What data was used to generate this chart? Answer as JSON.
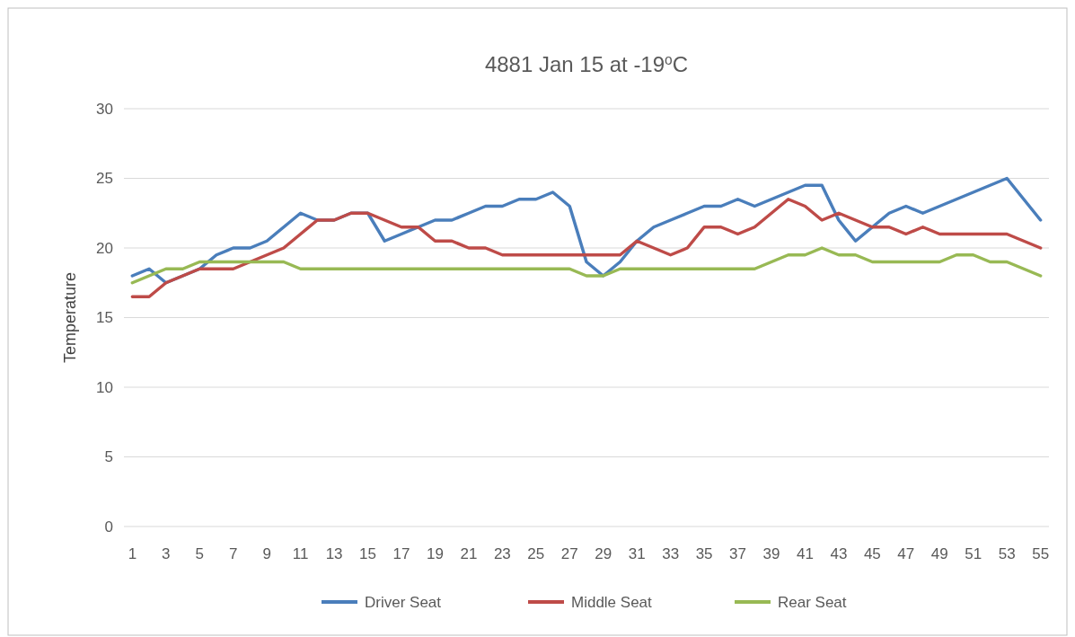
{
  "chart_data": {
    "type": "line",
    "title": "4881 Jan 15 at -19$^{o}$C",
    "ylabel": "Temperature",
    "x": [
      1,
      2,
      3,
      4,
      5,
      6,
      7,
      8,
      9,
      10,
      11,
      12,
      13,
      14,
      15,
      16,
      17,
      18,
      19,
      20,
      21,
      22,
      23,
      24,
      25,
      26,
      27,
      28,
      29,
      30,
      31,
      32,
      33,
      34,
      35,
      36,
      37,
      38,
      39,
      40,
      41,
      42,
      43,
      44,
      45,
      46,
      47,
      48,
      49,
      50,
      51,
      52,
      53,
      54,
      55
    ],
    "xlim": [
      0.5,
      55.5
    ],
    "xticks": [
      1,
      3,
      5,
      7,
      9,
      11,
      13,
      15,
      17,
      19,
      21,
      23,
      25,
      27,
      29,
      31,
      33,
      35,
      37,
      39,
      41,
      43,
      45,
      47,
      49,
      51,
      53,
      55
    ],
    "series": [
      {
        "name": "Driver Seat",
        "color": "#4a7ebb",
        "values": [
          18,
          18.5,
          17.5,
          18,
          18.5,
          19.5,
          20,
          20,
          20.5,
          21.5,
          22.5,
          22,
          22,
          22.5,
          22.5,
          20.5,
          21,
          21.5,
          22,
          22,
          22.5,
          23,
          23,
          23.5,
          23.5,
          24,
          23,
          19,
          18,
          19,
          20.5,
          21.5,
          22,
          22.5,
          23,
          23,
          23.5,
          23,
          23.5,
          24,
          24.5,
          24.5,
          22,
          20.5,
          21.5,
          22.5,
          23,
          22.5,
          23,
          23.5,
          24,
          24.5,
          25,
          23.5,
          22
        ]
      },
      {
        "name": "Middle Seat",
        "color": "#be4b48",
        "values": [
          16.5,
          16.5,
          17.5,
          18,
          18.5,
          18.5,
          18.5,
          19,
          19.5,
          20,
          21,
          22,
          22,
          22.5,
          22.5,
          22,
          21.5,
          21.5,
          20.5,
          20.5,
          20,
          20,
          19.5,
          19.5,
          19.5,
          19.5,
          19.5,
          19.5,
          19.5,
          19.5,
          20.5,
          20,
          19.5,
          20,
          21.5,
          21.5,
          21,
          21.5,
          22.5,
          23.5,
          23,
          22,
          22.5,
          22,
          21.5,
          21.5,
          21,
          21.5,
          21,
          21,
          21,
          21,
          21,
          20.5,
          20
        ]
      },
      {
        "name": "Rear Seat",
        "color": "#98b954",
        "values": [
          17.5,
          18,
          18.5,
          18.5,
          19,
          19,
          19,
          19,
          19,
          19,
          18.5,
          18.5,
          18.5,
          18.5,
          18.5,
          18.5,
          18.5,
          18.5,
          18.5,
          18.5,
          18.5,
          18.5,
          18.5,
          18.5,
          18.5,
          18.5,
          18.5,
          18,
          18,
          18.5,
          18.5,
          18.5,
          18.5,
          18.5,
          18.5,
          18.5,
          18.5,
          18.5,
          19,
          19.5,
          19.5,
          20,
          19.5,
          19.5,
          19,
          19,
          19,
          19,
          19,
          19.5,
          19.5,
          19,
          19,
          18.5,
          18
        ]
      }
    ],
    "ylim": [
      0,
      30
    ],
    "yticks": [
      0,
      5,
      10,
      15,
      20,
      25,
      30
    ],
    "grid": "y",
    "legend": "bottom",
    "marker": "none",
    "line_style": "solid"
  }
}
